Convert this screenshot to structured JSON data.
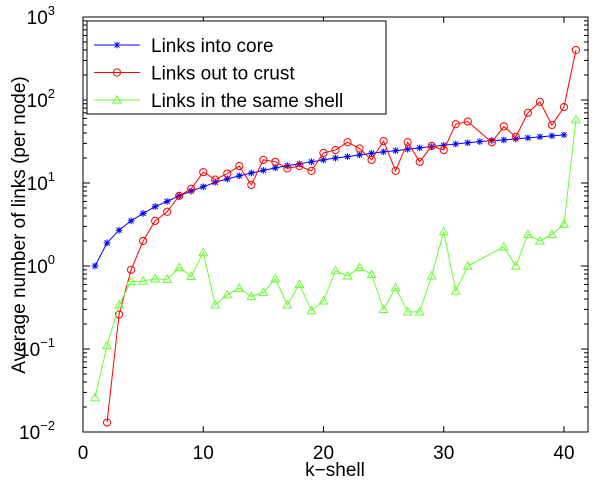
{
  "chart_data": {
    "type": "line",
    "title": "",
    "xlabel": "k−shell",
    "ylabel": "Average number of links (per node)",
    "xscale": "linear",
    "yscale": "log",
    "xlim": [
      0,
      42
    ],
    "ylim": [
      0.01,
      1000
    ],
    "grid": false,
    "legend_position": "top-left",
    "x_ticks": [
      {
        "value": 0,
        "label": "0"
      },
      {
        "value": 10,
        "label": "10"
      },
      {
        "value": 20,
        "label": "20"
      },
      {
        "value": 30,
        "label": "30"
      },
      {
        "value": 40,
        "label": "40"
      }
    ],
    "y_ticks": [
      {
        "value": 0.01,
        "base": "10",
        "exp": "−2"
      },
      {
        "value": 0.1,
        "base": "10",
        "exp": "−1"
      },
      {
        "value": 1,
        "base": "10",
        "exp": "0"
      },
      {
        "value": 10,
        "base": "10",
        "exp": "1"
      },
      {
        "value": 100,
        "base": "10",
        "exp": "2"
      },
      {
        "value": 1000,
        "base": "10",
        "exp": "3"
      }
    ],
    "series": [
      {
        "name": "Links into core",
        "color": "#0000ff",
        "marker": "star",
        "x": [
          1,
          2,
          3,
          4,
          5,
          6,
          7,
          8,
          9,
          10,
          11,
          12,
          13,
          14,
          15,
          16,
          17,
          18,
          19,
          20,
          21,
          22,
          23,
          24,
          25,
          26,
          27,
          28,
          29,
          30,
          31,
          32,
          33,
          34,
          35,
          36,
          37,
          38,
          39,
          40
        ],
        "y": [
          1.0,
          1.9,
          2.7,
          3.5,
          4.3,
          5.2,
          6.0,
          7.0,
          8.0,
          9.0,
          10.2,
          11.2,
          12.2,
          13.2,
          14.2,
          15.2,
          16.2,
          17.0,
          18.0,
          19.0,
          20.0,
          20.8,
          21.8,
          22.8,
          23.8,
          24.5,
          25.5,
          26.5,
          27.5,
          28.5,
          29.5,
          30.5,
          31.5,
          32.5,
          33.0,
          34.0,
          35.0,
          36.0,
          37.0,
          38.0
        ]
      },
      {
        "name": "Links out to crust",
        "color": "#ff0000",
        "marker": "circle",
        "x": [
          2,
          3,
          4,
          5,
          6,
          7,
          8,
          9,
          10,
          11,
          12,
          13,
          14,
          15,
          16,
          17,
          18,
          19,
          20,
          21,
          22,
          23,
          24,
          25,
          26,
          27,
          28,
          29,
          30,
          31,
          32,
          34,
          35,
          36,
          37,
          38,
          39,
          40,
          41
        ],
        "y": [
          0.013,
          0.26,
          0.9,
          2.0,
          3.5,
          4.5,
          7.0,
          8.5,
          13.5,
          11.0,
          13.0,
          16.0,
          9.5,
          19.0,
          18.0,
          15.0,
          16.0,
          14.0,
          23.0,
          25.0,
          31.0,
          26.0,
          19.0,
          32.0,
          14.0,
          31.0,
          18.0,
          28.0,
          25.0,
          51.0,
          55.0,
          31.0,
          48.0,
          36.0,
          70.0,
          95.0,
          50.0,
          82.0,
          400.0
        ]
      },
      {
        "name": "Links in the same shell",
        "color": "#66ff33",
        "marker": "triangle",
        "x": [
          1,
          2,
          3,
          4,
          5,
          6,
          7,
          8,
          9,
          10,
          11,
          12,
          13,
          14,
          15,
          16,
          17,
          18,
          19,
          20,
          21,
          22,
          23,
          24,
          25,
          26,
          27,
          28,
          29,
          30,
          31,
          32,
          35,
          36,
          37,
          38,
          39,
          40,
          41
        ],
        "y": [
          0.026,
          0.11,
          0.34,
          0.65,
          0.66,
          0.7,
          0.69,
          0.96,
          0.75,
          1.45,
          0.34,
          0.45,
          0.54,
          0.43,
          0.48,
          0.7,
          0.34,
          0.6,
          0.29,
          0.38,
          0.88,
          0.76,
          0.96,
          0.79,
          0.3,
          0.55,
          0.28,
          0.28,
          0.76,
          2.6,
          0.5,
          1.0,
          1.7,
          1.0,
          2.4,
          2.0,
          2.4,
          3.2,
          58.0
        ]
      }
    ]
  }
}
